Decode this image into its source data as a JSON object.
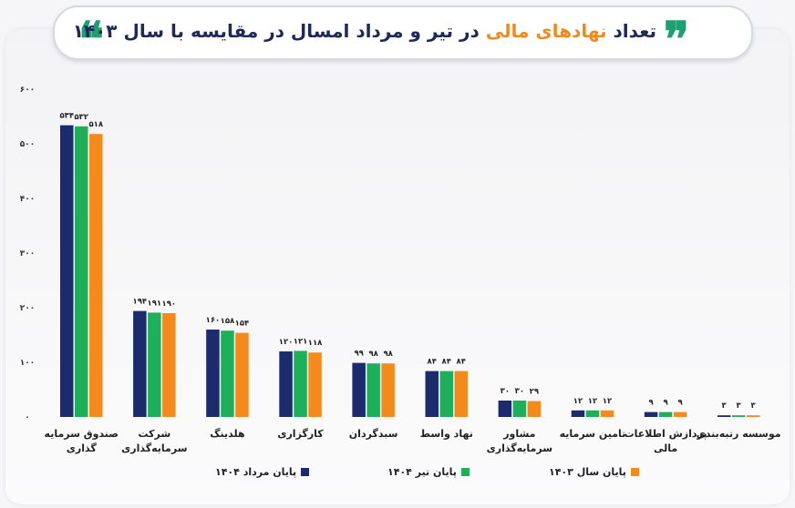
{
  "header": {
    "title_part1": "تعداد",
    "title_highlight": "نهادهای مالی",
    "title_part2": "در تیر و مرداد امسال در مقایسه با سال ۱۴۰۳",
    "quote_open": "❝",
    "quote_close": "❞"
  },
  "colors": {
    "navy": "#1b2b6b",
    "green": "#1fae5a",
    "orange": "#f28a1e",
    "accent": "#f0891f",
    "quote": "#1f9e72"
  },
  "chart_data": {
    "type": "bar",
    "ylim": [
      0,
      600
    ],
    "yticks": [
      0,
      100,
      200,
      300,
      400,
      500,
      600
    ],
    "ytick_labels": [
      "۰",
      "۱۰۰",
      "۲۰۰",
      "۳۰۰",
      "۴۰۰",
      "۵۰۰",
      "۶۰۰"
    ],
    "categories": [
      [
        "صندوق سرمایه",
        "گذاری"
      ],
      [
        "شرکت",
        "سرمایه‌گذاری"
      ],
      [
        "هلدینگ"
      ],
      [
        "کارگزاری"
      ],
      [
        "سبدگردان"
      ],
      [
        "نهاد واسط"
      ],
      [
        "مشاور",
        "سرمایه‌گذاری"
      ],
      [
        "تامین سرمایه"
      ],
      [
        "پردازش اطلاعات",
        "مالی"
      ],
      [
        "موسسه رتبه‌بندی"
      ]
    ],
    "series": [
      {
        "name": "پایان مرداد ۱۴۰۴",
        "color": "#1b2b6b",
        "values": [
          534,
          194,
          160,
          120,
          99,
          84,
          30,
          12,
          9,
          3
        ],
        "labels": [
          "۵۳۴",
          "۱۹۴",
          "۱۶۰",
          "۱۲۰",
          "۹۹",
          "۸۴",
          "۳۰",
          "۱۲",
          "۹",
          "۳"
        ]
      },
      {
        "name": "پایان تیر ۱۴۰۴",
        "color": "#1fae5a",
        "values": [
          532,
          191,
          158,
          121,
          98,
          84,
          30,
          12,
          9,
          3
        ],
        "labels": [
          "۵۳۲",
          "۱۹۱",
          "۱۵۸",
          "۱۲۱",
          "۹۸",
          "۸۴",
          "۳۰",
          "۱۲",
          "۹",
          "۳"
        ]
      },
      {
        "name": "پایان سال ۱۴۰۳",
        "color": "#f28a1e",
        "values": [
          518,
          190,
          154,
          118,
          98,
          84,
          29,
          12,
          9,
          3
        ],
        "labels": [
          "۵۱۸",
          "۱۹۰",
          "۱۵۴",
          "۱۱۸",
          "۹۸",
          "۸۴",
          "۲۹",
          "۱۲",
          "۹",
          "۳"
        ]
      }
    ],
    "legend_position": "bottom",
    "grid": false
  }
}
